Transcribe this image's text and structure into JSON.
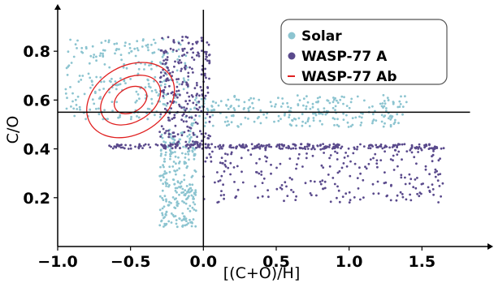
{
  "chart_data": {
    "type": "scatter",
    "title": "",
    "xlabel": "[(C+O)/H]",
    "ylabel": "C/O",
    "xlim": [
      -1.0,
      1.95
    ],
    "ylim": [
      0.0,
      0.97
    ],
    "xticks": [
      {
        "value": -1.0,
        "label": "−1.0"
      },
      {
        "value": -0.5,
        "label": "−0.5"
      },
      {
        "value": 0.0,
        "label": "0.0"
      },
      {
        "value": 0.5,
        "label": "0.5"
      },
      {
        "value": 1.0,
        "label": "1.0"
      },
      {
        "value": 1.5,
        "label": "1.5"
      }
    ],
    "yticks": [
      {
        "value": 0.2,
        "label": "0.2"
      },
      {
        "value": 0.4,
        "label": "0.4"
      },
      {
        "value": 0.6,
        "label": "0.6"
      },
      {
        "value": 0.8,
        "label": "0.8"
      }
    ],
    "reference_lines": {
      "vertical_x": 0.0,
      "horizontal_y": 0.55
    },
    "legend_position": "top-right",
    "series": [
      {
        "name": "Solar",
        "kind": "scatter-cloud",
        "color": "#8cc4d0",
        "regions": [
          {
            "x": [
              -0.95,
              -0.1
            ],
            "y": [
              0.52,
              0.85
            ]
          },
          {
            "x": [
              -0.1,
              1.4
            ],
            "y": [
              0.49,
              0.62
            ]
          },
          {
            "x": [
              -0.3,
              -0.05
            ],
            "y": [
              0.08,
              0.48
            ]
          }
        ]
      },
      {
        "name": "WASP-77 A",
        "kind": "scatter-cloud",
        "color": "#5a4a8c",
        "regions": [
          {
            "x": [
              -0.3,
              0.05
            ],
            "y": [
              0.41,
              0.86
            ]
          },
          {
            "x": [
              0.0,
              1.65
            ],
            "y": [
              0.18,
              0.41
            ]
          },
          {
            "x": [
              -0.65,
              1.65
            ],
            "y": [
              0.4,
              0.42
            ]
          }
        ]
      },
      {
        "name": "WASP-77 Ab",
        "kind": "contour",
        "color": "#e02020",
        "center": {
          "x": -0.5,
          "y": 0.6
        },
        "contours": [
          {
            "rx": 0.12,
            "ry": 0.05
          },
          {
            "rx": 0.22,
            "ry": 0.09
          },
          {
            "rx": 0.32,
            "ry": 0.14
          }
        ],
        "tilt_deg": 30
      }
    ]
  }
}
